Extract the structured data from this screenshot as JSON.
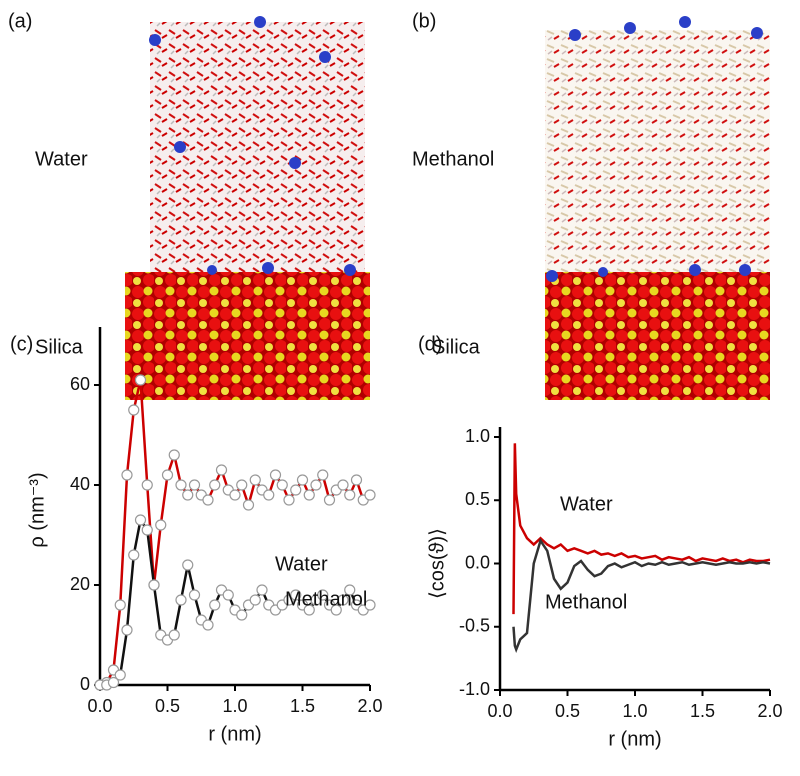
{
  "panels": [
    {
      "label": "(a)",
      "liquid": "Water",
      "solid": "Silica"
    },
    {
      "label": "(b)",
      "liquid": "Methanol",
      "solid": "Silica"
    }
  ],
  "chart_data": [
    {
      "type": "line",
      "label": "(c)",
      "markers": true,
      "xlabel": "r (nm)",
      "ylabel": "ρ (nm⁻³)",
      "xlim": [
        0,
        2
      ],
      "ylim": [
        0,
        70
      ],
      "xticks": [
        {
          "value": 0,
          "label": "0.0"
        },
        {
          "value": 0.5,
          "label": "0.5"
        },
        {
          "value": 1,
          "label": "1.0"
        },
        {
          "value": 1.5,
          "label": "1.5"
        },
        {
          "value": 2,
          "label": "2.0"
        }
      ],
      "yticks": [
        0,
        20,
        40,
        60
      ],
      "x": [
        0,
        0.05,
        0.1,
        0.15,
        0.2,
        0.25,
        0.3,
        0.35,
        0.4,
        0.45,
        0.5,
        0.55,
        0.6,
        0.65,
        0.7,
        0.75,
        0.8,
        0.85,
        0.9,
        0.95,
        1,
        1.05,
        1.1,
        1.15,
        1.2,
        1.25,
        1.3,
        1.35,
        1.4,
        1.45,
        1.5,
        1.55,
        1.6,
        1.65,
        1.7,
        1.75,
        1.8,
        1.85,
        1.9,
        1.95,
        2
      ],
      "series": [
        {
          "name": "Water",
          "color": "#cc0000",
          "values": [
            0,
            0.5,
            3,
            16,
            42,
            55,
            61,
            40,
            20,
            32,
            42,
            46,
            40,
            38,
            40,
            38,
            37,
            40,
            43,
            39,
            38,
            40,
            36,
            41,
            39,
            38,
            42,
            40,
            37,
            39,
            41,
            38,
            40,
            42,
            37,
            39,
            40,
            38,
            41,
            37,
            38
          ]
        },
        {
          "name": "Methanol",
          "color": "#111111",
          "values": [
            0,
            0,
            0.5,
            2,
            11,
            26,
            33,
            31,
            20,
            10,
            9,
            10,
            17,
            24,
            18,
            13,
            12,
            16,
            19,
            18,
            15,
            14,
            16,
            17,
            19,
            16,
            15,
            16,
            17,
            18,
            16,
            15,
            17,
            18,
            16,
            15,
            17,
            19,
            16,
            15,
            16
          ]
        }
      ]
    },
    {
      "type": "line",
      "label": "(d)",
      "markers": false,
      "xlabel": "r (nm)",
      "ylabel": "⟨cos(ϑ)⟩",
      "xlim": [
        0,
        2
      ],
      "ylim": [
        -1,
        1
      ],
      "xticks": [
        {
          "value": 0,
          "label": "0.0"
        },
        {
          "value": 0.5,
          "label": "0.5"
        },
        {
          "value": 1,
          "label": "1.0"
        },
        {
          "value": 1.5,
          "label": "1.5"
        },
        {
          "value": 2,
          "label": "2.0"
        }
      ],
      "yticks": [
        {
          "value": -1,
          "label": "-1.0"
        },
        {
          "value": -0.5,
          "label": "-0.5"
        },
        {
          "value": 0,
          "label": "0.0"
        },
        {
          "value": 0.5,
          "label": "0.5"
        },
        {
          "value": 1,
          "label": "1.0"
        }
      ],
      "x": [
        0.1,
        0.11,
        0.12,
        0.15,
        0.2,
        0.25,
        0.3,
        0.35,
        0.4,
        0.45,
        0.5,
        0.55,
        0.6,
        0.65,
        0.7,
        0.75,
        0.8,
        0.85,
        0.9,
        0.95,
        1,
        1.05,
        1.1,
        1.15,
        1.2,
        1.25,
        1.3,
        1.35,
        1.4,
        1.45,
        1.5,
        1.55,
        1.6,
        1.65,
        1.7,
        1.75,
        1.8,
        1.85,
        1.9,
        1.95,
        2
      ],
      "series": [
        {
          "name": "Water",
          "color": "#cc0000",
          "values": [
            -0.4,
            0.95,
            0.55,
            0.3,
            0.2,
            0.15,
            0.2,
            0.15,
            0.12,
            0.15,
            0.1,
            0.12,
            0.1,
            0.08,
            0.1,
            0.07,
            0.08,
            0.06,
            0.08,
            0.05,
            0.06,
            0.04,
            0.05,
            0.06,
            0.03,
            0.05,
            0.04,
            0.03,
            0.05,
            0.02,
            0.04,
            0.03,
            0.02,
            0.04,
            0.02,
            0.03,
            0.01,
            0.03,
            0.02,
            0.02,
            0.03
          ]
        },
        {
          "name": "Methanol",
          "color": "#333333",
          "values": [
            -0.5,
            -0.65,
            -0.68,
            -0.6,
            -0.55,
            0,
            0.18,
            0.1,
            -0.12,
            -0.2,
            -0.15,
            -0.02,
            0.02,
            -0.05,
            -0.1,
            -0.08,
            -0.02,
            0,
            -0.03,
            -0.01,
            0.01,
            -0.02,
            0,
            -0.01,
            0.01,
            -0.01,
            0,
            0.01,
            -0.01,
            0,
            0.01,
            0,
            -0.01,
            0,
            0.01,
            0,
            0,
            0.01,
            0,
            0.01,
            0
          ]
        }
      ]
    }
  ]
}
